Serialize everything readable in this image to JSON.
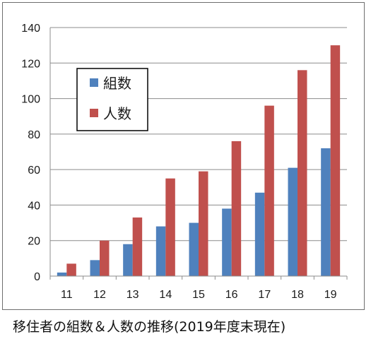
{
  "chart_data": {
    "type": "bar",
    "title": "",
    "xlabel": "",
    "ylabel": "",
    "categories": [
      "11",
      "12",
      "13",
      "14",
      "15",
      "16",
      "17",
      "18",
      "19"
    ],
    "series": [
      {
        "name": "組数",
        "color": "#4f81bd",
        "values": [
          2,
          9,
          18,
          28,
          30,
          38,
          47,
          61,
          72
        ]
      },
      {
        "name": "人数",
        "color": "#c0504d",
        "values": [
          7,
          20,
          33,
          55,
          59,
          76,
          96,
          116,
          130
        ]
      }
    ],
    "ylim": [
      0,
      140
    ],
    "yticks": [
      0,
      20,
      40,
      60,
      80,
      100,
      120,
      140
    ],
    "grid": true,
    "legend_position": "top-left"
  },
  "caption": "移住者の組数＆人数の推移(2019年度末現在)"
}
